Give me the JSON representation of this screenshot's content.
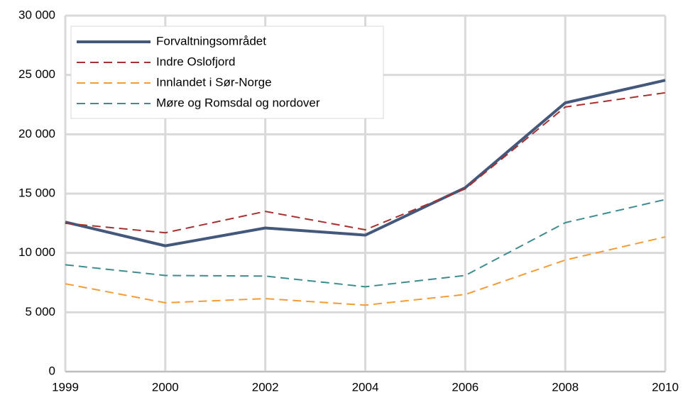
{
  "chart_data": {
    "type": "line",
    "categories": [
      "1999",
      "2000",
      "2002",
      "2004",
      "2006",
      "2008",
      "2010"
    ],
    "series": [
      {
        "name": "Forvaltningsområdet",
        "color": "#44587c",
        "dashed": false,
        "values": [
          12600,
          10600,
          12100,
          11500,
          15500,
          22650,
          24550
        ]
      },
      {
        "name": "Indre Oslofjord",
        "color": "#a5302e",
        "dashed": true,
        "values": [
          12500,
          11700,
          13500,
          11950,
          15400,
          22300,
          23500
        ]
      },
      {
        "name": "Innlandet i Sør-Norge",
        "color": "#f39c35",
        "dashed": true,
        "values": [
          7400,
          5800,
          6150,
          5600,
          6500,
          9400,
          11350
        ]
      },
      {
        "name": "Møre og Romsdal og nordover",
        "color": "#3d8c8f",
        "dashed": true,
        "values": [
          9000,
          8100,
          8050,
          7150,
          8100,
          12550,
          14500
        ]
      }
    ],
    "ylim": [
      0,
      30000
    ],
    "yticks": [
      0,
      {
        "value": 5000,
        "label": "5 000"
      },
      {
        "value": 10000,
        "label": "10 000"
      },
      {
        "value": 15000,
        "label": "15 000"
      },
      {
        "value": 20000,
        "label": "20 000"
      },
      {
        "value": 25000,
        "label": "25 000"
      },
      {
        "value": 30000,
        "label": "30 000"
      }
    ],
    "grid": true,
    "legend": "top-left"
  }
}
